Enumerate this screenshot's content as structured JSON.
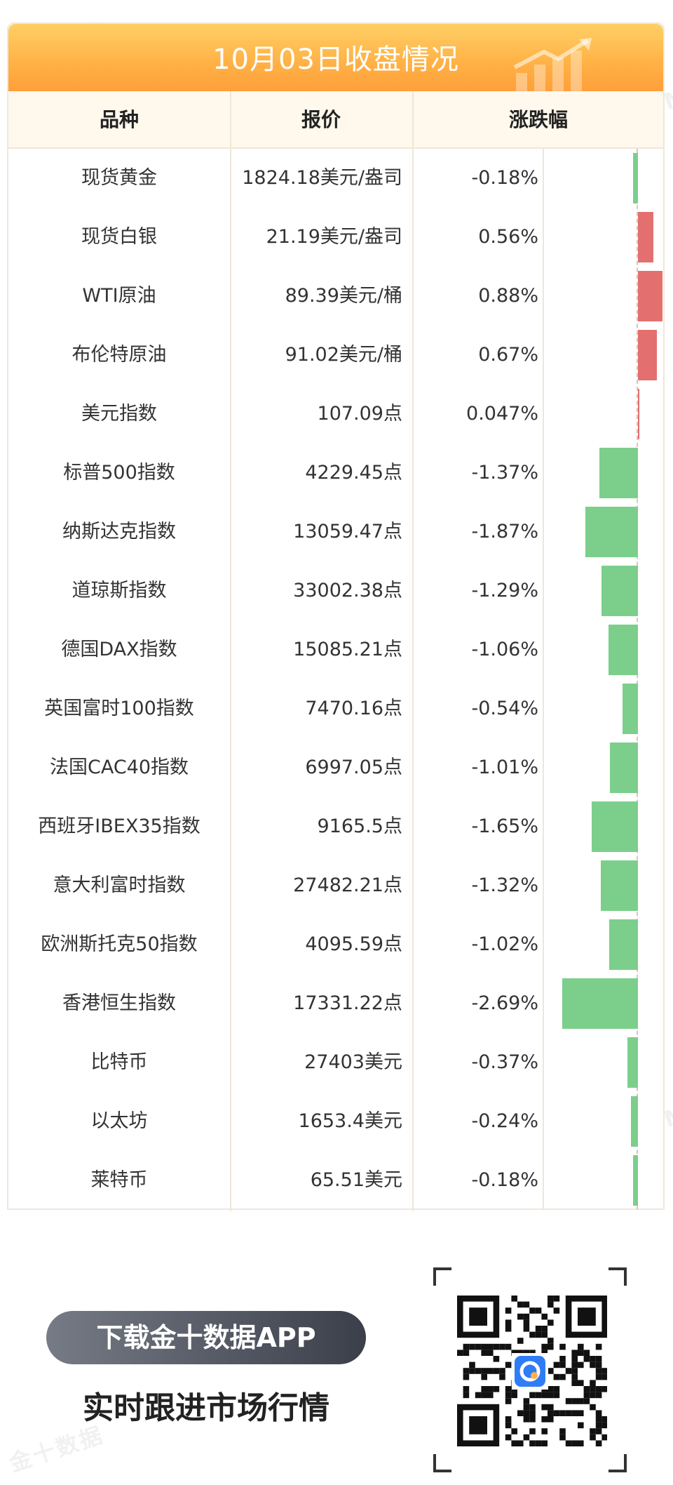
{
  "header": {
    "title": "10月03日收盘情况"
  },
  "table": {
    "columns": [
      "品种",
      "报价",
      "涨跌幅"
    ],
    "rows": [
      {
        "name": "现货黄金",
        "price": "1824.18美元/盎司",
        "change": "-0.18%",
        "pct": -0.18
      },
      {
        "name": "现货白银",
        "price": "21.19美元/盎司",
        "change": "0.56%",
        "pct": 0.56
      },
      {
        "name": "WTI原油",
        "price": "89.39美元/桶",
        "change": "0.88%",
        "pct": 0.88
      },
      {
        "name": "布伦特原油",
        "price": "91.02美元/桶",
        "change": "0.67%",
        "pct": 0.67
      },
      {
        "name": "美元指数",
        "price": "107.09点",
        "change": "0.047%",
        "pct": 0.047
      },
      {
        "name": "标普500指数",
        "price": "4229.45点",
        "change": "-1.37%",
        "pct": -1.37
      },
      {
        "name": "纳斯达克指数",
        "price": "13059.47点",
        "change": "-1.87%",
        "pct": -1.87
      },
      {
        "name": "道琼斯指数",
        "price": "33002.38点",
        "change": "-1.29%",
        "pct": -1.29
      },
      {
        "name": "德国DAX指数",
        "price": "15085.21点",
        "change": "-1.06%",
        "pct": -1.06
      },
      {
        "name": "英国富时100指数",
        "price": "7470.16点",
        "change": "-0.54%",
        "pct": -0.54
      },
      {
        "name": "法国CAC40指数",
        "price": "6997.05点",
        "change": "-1.01%",
        "pct": -1.01
      },
      {
        "name": "西班牙IBEX35指数",
        "price": "9165.5点",
        "change": "-1.65%",
        "pct": -1.65
      },
      {
        "name": "意大利富时指数",
        "price": "27482.21点",
        "change": "-1.32%",
        "pct": -1.32
      },
      {
        "name": "欧洲斯托克50指数",
        "price": "4095.59点",
        "change": "-1.02%",
        "pct": -1.02
      },
      {
        "name": "香港恒生指数",
        "price": "17331.22点",
        "change": "-2.69%",
        "pct": -2.69
      },
      {
        "name": "比特币",
        "price": "27403美元",
        "change": "-0.37%",
        "pct": -0.37
      },
      {
        "name": "以太坊",
        "price": "1653.4美元",
        "change": "-0.24%",
        "pct": -0.24
      },
      {
        "name": "莱特币",
        "price": "65.51美元",
        "change": "-0.18%",
        "pct": -0.18
      }
    ]
  },
  "colors": {
    "up": "#e46f6f",
    "down": "#7ccf8b",
    "banner": "#ffb347"
  },
  "watermark": [
    "金十数据",
    "JIN10.COM"
  ],
  "footer": {
    "download_label": "下载金十数据APP",
    "slogan": "实时跟进市场行情",
    "qr_icon": "qr-code-icon"
  }
}
